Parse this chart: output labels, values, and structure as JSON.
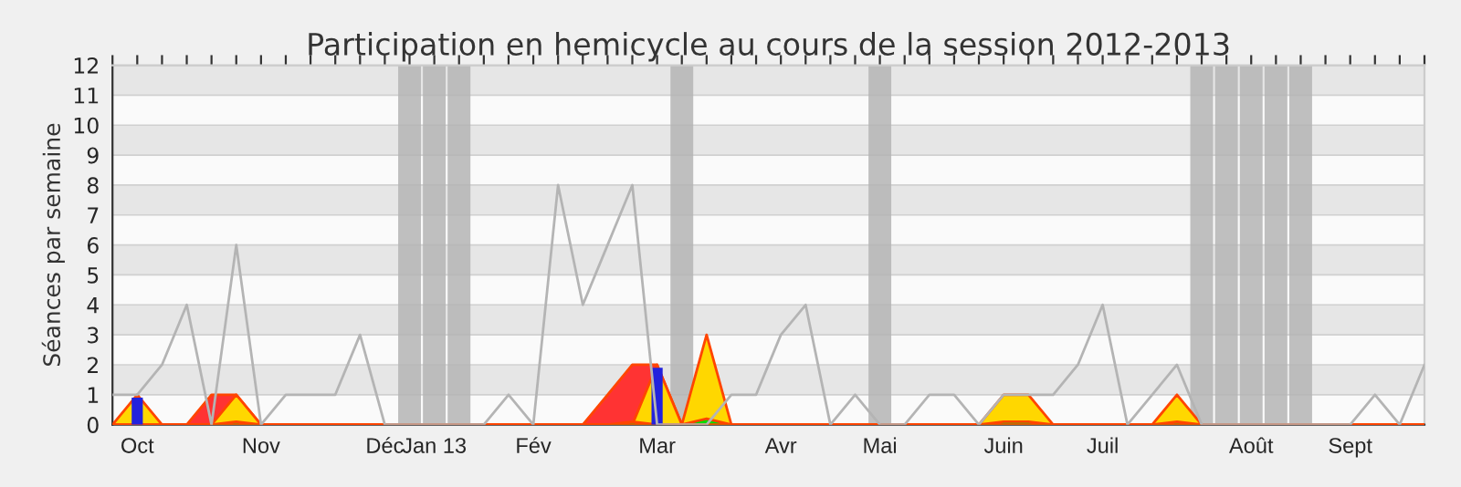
{
  "chart_data": {
    "type": "area",
    "title": "Participation en hemicycle au cours de la session 2012-2013",
    "ylabel": "Séances par semaine",
    "categories": [
      null,
      "Oct",
      null,
      null,
      null,
      null,
      "Nov",
      null,
      null,
      null,
      null,
      "Déc",
      null,
      "Jan 13",
      null,
      null,
      null,
      "Fév",
      null,
      null,
      null,
      null,
      "Mar",
      null,
      null,
      null,
      null,
      "Avr",
      null,
      null,
      null,
      "Mai",
      null,
      null,
      null,
      null,
      "Juin",
      null,
      null,
      null,
      "Juil",
      null,
      null,
      null,
      null,
      null,
      "Août",
      null,
      null,
      null,
      "Sept",
      null,
      null,
      null
    ],
    "series": [
      {
        "type": "bar",
        "color": "#b4b4b4",
        "values": [
          null,
          null,
          null,
          null,
          null,
          null,
          null,
          null,
          null,
          null,
          null,
          null,
          12,
          12,
          12,
          null,
          null,
          null,
          null,
          null,
          null,
          null,
          null,
          12,
          null,
          null,
          null,
          null,
          null,
          null,
          null,
          12,
          null,
          null,
          null,
          null,
          null,
          null,
          null,
          null,
          null,
          null,
          null,
          null,
          12,
          12,
          12,
          12,
          12,
          null,
          null,
          null,
          null,
          null
        ]
      },
      {
        "color": "#ff3333",
        "values": [
          0,
          0,
          0,
          0,
          1,
          1,
          0,
          0,
          0,
          0,
          0,
          0,
          0,
          0,
          0,
          0,
          0,
          0,
          0,
          0,
          1,
          2,
          2,
          0,
          0,
          0,
          0,
          0,
          0,
          0,
          0,
          0,
          0,
          0,
          0,
          0,
          0,
          0,
          0,
          0,
          0,
          0,
          0,
          0,
          0,
          0,
          0,
          0,
          0,
          0,
          0,
          0,
          0,
          0
        ]
      },
      {
        "color": "#ffd700",
        "values": [
          0,
          1,
          0,
          0,
          0,
          1,
          0,
          0,
          0,
          0,
          0,
          0,
          0,
          0,
          0,
          0,
          0,
          0,
          0,
          0,
          0,
          0,
          2,
          0,
          3,
          0,
          0,
          0,
          0,
          0,
          0,
          0,
          0,
          0,
          0,
          0,
          1,
          1,
          0,
          0,
          0,
          0,
          0,
          1,
          0,
          0,
          0,
          0,
          0,
          0,
          0,
          0,
          0,
          0
        ]
      },
      {
        "color": "#00dd00",
        "values": [
          0,
          0,
          0,
          0,
          0,
          0.1,
          0,
          0,
          0,
          0,
          0,
          0,
          0,
          0,
          0,
          0,
          0,
          0,
          0,
          0,
          0,
          0.1,
          0,
          0,
          0.2,
          0,
          0,
          0,
          0,
          0,
          0,
          0,
          0,
          0,
          0,
          0,
          0.1,
          0.1,
          0,
          0,
          0,
          0,
          0,
          0.1,
          0,
          0,
          0,
          0,
          0,
          0,
          0,
          0,
          0,
          0
        ]
      },
      {
        "type": "bar",
        "color": "#2222dd",
        "values": [
          null,
          0.9,
          null,
          null,
          null,
          null,
          null,
          null,
          null,
          null,
          null,
          null,
          null,
          null,
          null,
          null,
          null,
          null,
          null,
          null,
          null,
          null,
          1.9,
          null,
          null,
          null,
          null,
          null,
          null,
          null,
          null,
          null,
          null,
          null,
          null,
          null,
          null,
          null,
          null,
          null,
          null,
          null,
          null,
          null,
          null,
          null,
          null,
          null,
          null,
          null,
          null,
          null,
          null,
          null
        ]
      },
      {
        "type": "line",
        "color": "#b4b4b4",
        "values": [
          1,
          1,
          2,
          4,
          0,
          6,
          0,
          1,
          1,
          1,
          3,
          0,
          0,
          0,
          0,
          0,
          1,
          0,
          8,
          4,
          6,
          8,
          0,
          0,
          0,
          1,
          1,
          3,
          4,
          0,
          1,
          0,
          0,
          1,
          1,
          0,
          1,
          1,
          1,
          2,
          4,
          0,
          1,
          2,
          0,
          0,
          0,
          0,
          0,
          0,
          0,
          1,
          0,
          2
        ]
      }
    ],
    "ylim": [
      0,
      12
    ],
    "yticks": [
      0,
      1,
      2,
      3,
      4,
      5,
      6,
      7,
      8,
      9,
      10,
      11,
      12
    ],
    "grid": "y",
    "legend": false
  }
}
